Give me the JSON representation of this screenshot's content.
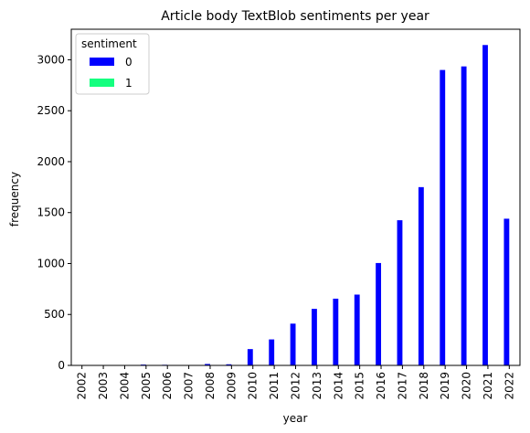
{
  "chart_data": {
    "type": "bar",
    "title": "Article body TextBlob sentiments per year",
    "xlabel": "year",
    "ylabel": "frequency",
    "categories": [
      "2002",
      "2003",
      "2004",
      "2005",
      "2006",
      "2007",
      "2008",
      "2009",
      "2010",
      "2011",
      "2012",
      "2013",
      "2014",
      "2015",
      "2016",
      "2017",
      "2018",
      "2019",
      "2020",
      "2021",
      "2022"
    ],
    "series": [
      {
        "name": "0",
        "color": "#0000ff",
        "values": [
          1,
          1,
          2,
          8,
          6,
          3,
          14,
          11,
          160,
          255,
          410,
          555,
          655,
          695,
          1005,
          1425,
          1750,
          2900,
          2935,
          3145,
          1440
        ]
      },
      {
        "name": "1",
        "color": "#14ff7f",
        "values": [
          0,
          0,
          0,
          0,
          0,
          0,
          0,
          0,
          0,
          0,
          0,
          0,
          0,
          0,
          0,
          0,
          0,
          0,
          0,
          0,
          0
        ]
      }
    ],
    "ylim": [
      0,
      3300
    ],
    "yticks": [
      0,
      500,
      1000,
      1500,
      2000,
      2500,
      3000
    ],
    "legend": {
      "title": "sentiment",
      "position": "top-left"
    },
    "grid": false
  }
}
